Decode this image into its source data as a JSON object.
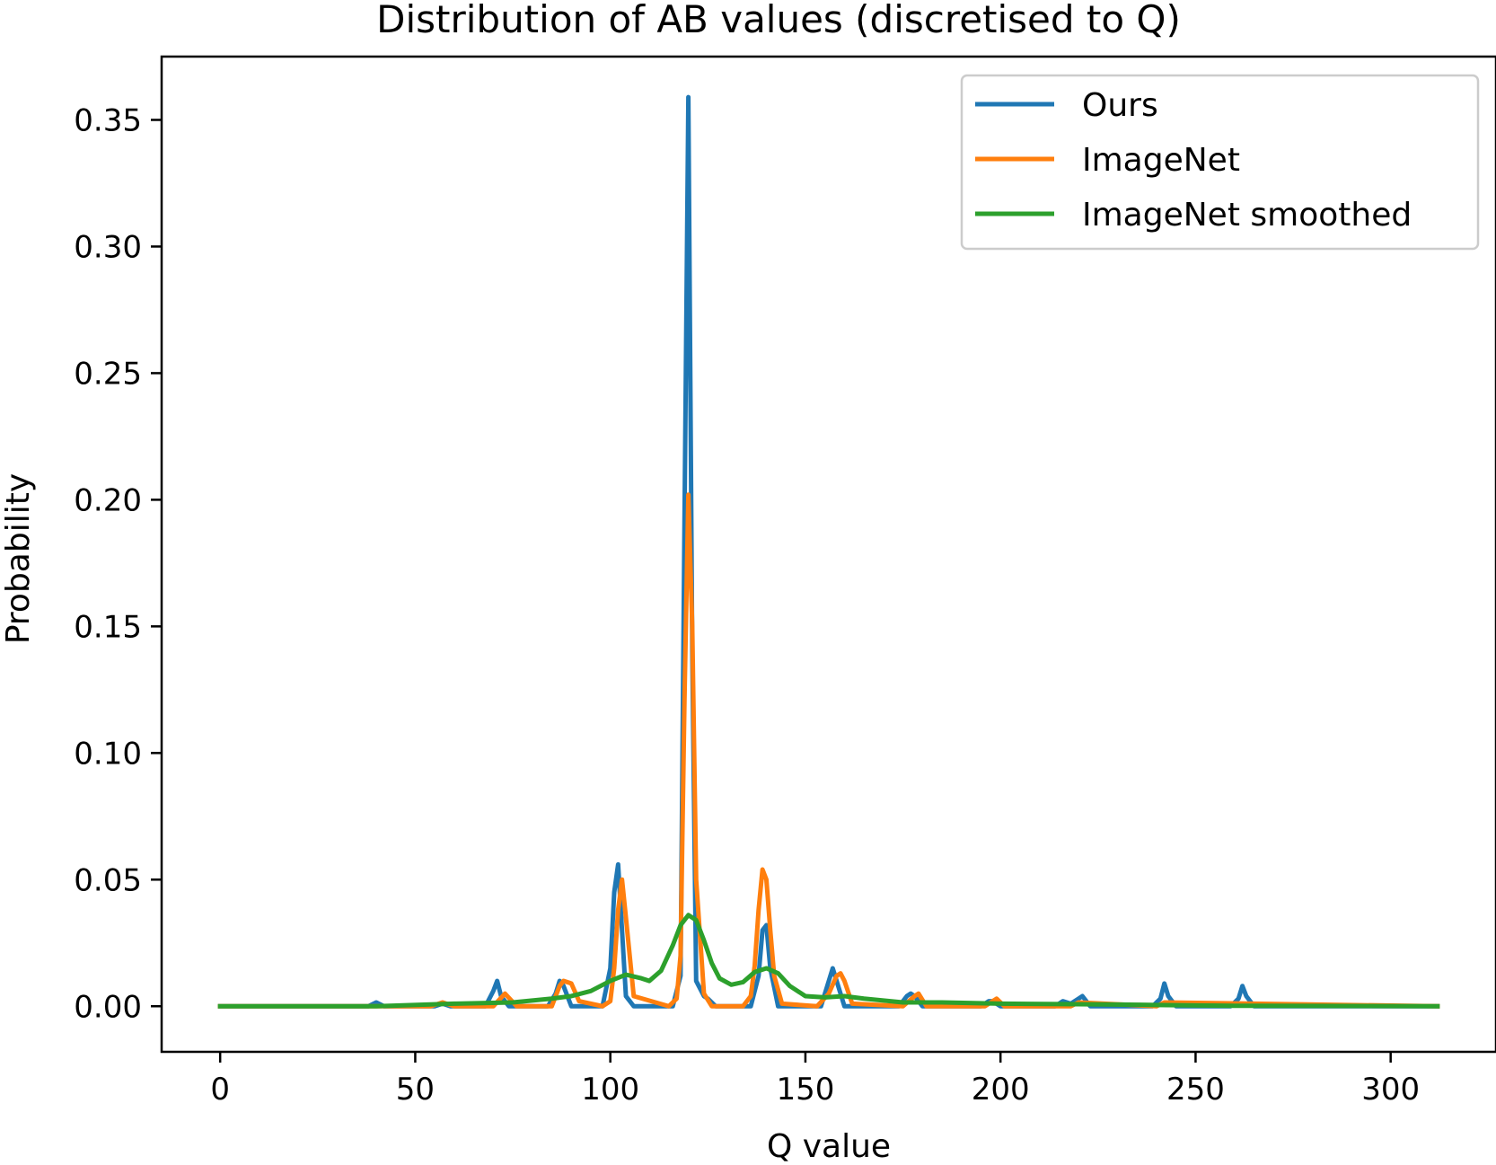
{
  "chart_data": {
    "type": "line",
    "title": "Distribution of AB values (discretised to Q)",
    "xlabel": "Q value",
    "ylabel": "Probability",
    "xlim": [
      -15,
      327
    ],
    "ylim": [
      -0.018,
      0.375
    ],
    "x_ticks": [
      0,
      50,
      100,
      150,
      200,
      250,
      300
    ],
    "x_tick_labels": [
      "0",
      "50",
      "100",
      "150",
      "200",
      "250",
      "300"
    ],
    "y_ticks": [
      0.0,
      0.05,
      0.1,
      0.15,
      0.2,
      0.25,
      0.3,
      0.35
    ],
    "y_tick_labels": [
      "0.00",
      "0.05",
      "0.10",
      "0.15",
      "0.20",
      "0.25",
      "0.30",
      "0.35"
    ],
    "grid": false,
    "legend_position": "top-right",
    "series": [
      {
        "name": "Ours",
        "color": "#1f77b4",
        "x": [
          0,
          38,
          40,
          42,
          55,
          57,
          59,
          68,
          70,
          71,
          72,
          74,
          84,
          86,
          87,
          88,
          90,
          98,
          100,
          101,
          102,
          103,
          104,
          106,
          116,
          118,
          119,
          120,
          121,
          122,
          124,
          125,
          127,
          136,
          138,
          139,
          140,
          141,
          143,
          154,
          156,
          157,
          158,
          160,
          174,
          176,
          177,
          178,
          180,
          195,
          197,
          198,
          200,
          214,
          216,
          217,
          218,
          220,
          221,
          223,
          239,
          241,
          242,
          243,
          245,
          259,
          261,
          262,
          263,
          265,
          312
        ],
        "y": [
          0,
          0,
          0.0015,
          0,
          0,
          0.001,
          0,
          0,
          0.006,
          0.01,
          0.004,
          0,
          0,
          0.005,
          0.01,
          0.008,
          0,
          0,
          0.015,
          0.045,
          0.056,
          0.03,
          0.004,
          0,
          0,
          0.012,
          0.19,
          0.359,
          0.14,
          0.01,
          0.004,
          0.003,
          0,
          0,
          0.012,
          0.03,
          0.032,
          0.015,
          0,
          0,
          0.01,
          0.015,
          0.01,
          0,
          0,
          0.004,
          0.005,
          0.004,
          0,
          0,
          0.002,
          0.002,
          0,
          0,
          0.002,
          0.0015,
          0.001,
          0.003,
          0.004,
          0,
          0,
          0.003,
          0.009,
          0.004,
          0,
          0,
          0.003,
          0.008,
          0.004,
          0,
          0
        ]
      },
      {
        "name": "ImageNet",
        "color": "#ff7f0e",
        "x": [
          0,
          54,
          57,
          60,
          70,
          73,
          76,
          85,
          87,
          88,
          90,
          92,
          98,
          100,
          101,
          102,
          103,
          104,
          106,
          115,
          117,
          118,
          119,
          120,
          121,
          122,
          124,
          126,
          134,
          136,
          137,
          138,
          139,
          140,
          141,
          142,
          144,
          153,
          156,
          158,
          159,
          160,
          162,
          175,
          178,
          179,
          181,
          196,
          198,
          199,
          201,
          218,
          220,
          240,
          242,
          312
        ],
        "y": [
          0,
          0,
          0.0015,
          0,
          0,
          0.005,
          0,
          0,
          0.008,
          0.01,
          0.009,
          0.002,
          0,
          0.002,
          0.015,
          0.038,
          0.05,
          0.035,
          0.004,
          0,
          0.003,
          0.02,
          0.12,
          0.202,
          0.15,
          0.05,
          0.005,
          0,
          0,
          0.004,
          0.016,
          0.038,
          0.054,
          0.05,
          0.03,
          0.012,
          0.001,
          0,
          0.005,
          0.012,
          0.013,
          0.01,
          0.001,
          0,
          0.004,
          0.005,
          0,
          0,
          0.002,
          0.003,
          0,
          0,
          0.0015,
          0,
          0.0015,
          0
        ]
      },
      {
        "name": "ImageNet smoothed",
        "color": "#2ca02c",
        "x": [
          0,
          40,
          60,
          75,
          85,
          90,
          95,
          100,
          104,
          108,
          110,
          113,
          116,
          118,
          120,
          122,
          124,
          126,
          128,
          131,
          134,
          137,
          140,
          143,
          146,
          150,
          155,
          160,
          165,
          175,
          185,
          200,
          220,
          240,
          260,
          312
        ],
        "y": [
          0,
          0,
          0.001,
          0.0015,
          0.003,
          0.004,
          0.006,
          0.01,
          0.0125,
          0.011,
          0.01,
          0.014,
          0.024,
          0.032,
          0.036,
          0.034,
          0.026,
          0.017,
          0.011,
          0.0085,
          0.0095,
          0.0135,
          0.015,
          0.013,
          0.008,
          0.004,
          0.0035,
          0.004,
          0.003,
          0.0015,
          0.0015,
          0.001,
          0.0008,
          0.0005,
          0.0002,
          0
        ]
      }
    ]
  }
}
